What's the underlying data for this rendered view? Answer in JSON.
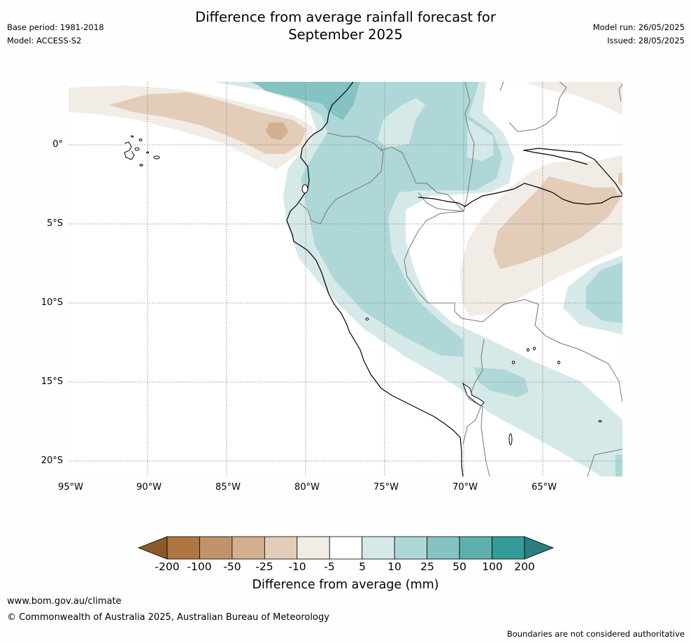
{
  "title_line1": "Difference from average rainfall forecast for",
  "title_line2": "September 2025",
  "base_period": "Base period: 1981-2018",
  "model": "Model: ACCESS-S2",
  "model_run": "Model run: 26/05/2025",
  "issued": "Issued: 28/05/2025",
  "lat_labels": [
    "0°",
    "5°S",
    "10°S",
    "15°S",
    "20°S"
  ],
  "lon_labels": [
    "95°W",
    "90°W",
    "85°W",
    "80°W",
    "75°W",
    "70°W",
    "65°W"
  ],
  "colorbar": {
    "labels": [
      "-200",
      "-100",
      "-50",
      "-25",
      "-10",
      "-5",
      "5",
      "10",
      "25",
      "50",
      "100",
      "200"
    ],
    "colors": [
      "#8c5a2a",
      "#ae7540",
      "#c19369",
      "#d3b08f",
      "#e3cdb9",
      "#f1ece5",
      "#ffffff",
      "#d5e9e8",
      "#aed8d7",
      "#84c3c1",
      "#5eb0ad",
      "#359b98",
      "#2b7f7c"
    ],
    "title": "Difference from average (mm)"
  },
  "website": "www.bom.gov.au/climate",
  "copyright": "© Commonwealth of Australia 2025, Australian Bureau of Meteorology",
  "disclaimer": "Boundaries are not considered authoritative"
}
